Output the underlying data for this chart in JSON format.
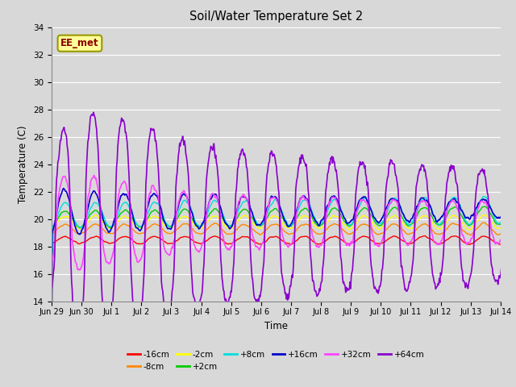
{
  "title": "Soil/Water Temperature Set 2",
  "xlabel": "Time",
  "ylabel": "Temperature (C)",
  "ylim": [
    14,
    34
  ],
  "yticks": [
    14,
    16,
    18,
    20,
    22,
    24,
    26,
    28,
    30,
    32,
    34
  ],
  "xtick_labels": [
    "Jun 29",
    "Jun 30",
    "Jul 1",
    "Jul 2",
    "Jul 3",
    "Jul 4",
    "Jul 5",
    "Jul 6",
    "Jul 7",
    "Jul 8",
    "Jul 9",
    "Jul 10",
    "Jul 11",
    "Jul 12",
    "Jul 13",
    "Jul 14"
  ],
  "background_color": "#d8d8d8",
  "plot_bg_color": "#d8d8d8",
  "grid_color": "#ffffff",
  "annotation_text": "EE_met",
  "annotation_bg": "#ffff99",
  "annotation_border": "#999900",
  "series_colors": {
    "-16cm": "#ff0000",
    "-8cm": "#ff8800",
    "-2cm": "#ffff00",
    "+2cm": "#00cc00",
    "+8cm": "#00dddd",
    "+16cm": "#0000cc",
    "+32cm": "#ff44ff",
    "+64cm": "#8800cc"
  },
  "legend_order": [
    "-16cm",
    "-8cm",
    "-2cm",
    "+2cm",
    "+8cm",
    "+16cm",
    "+32cm",
    "+64cm"
  ]
}
